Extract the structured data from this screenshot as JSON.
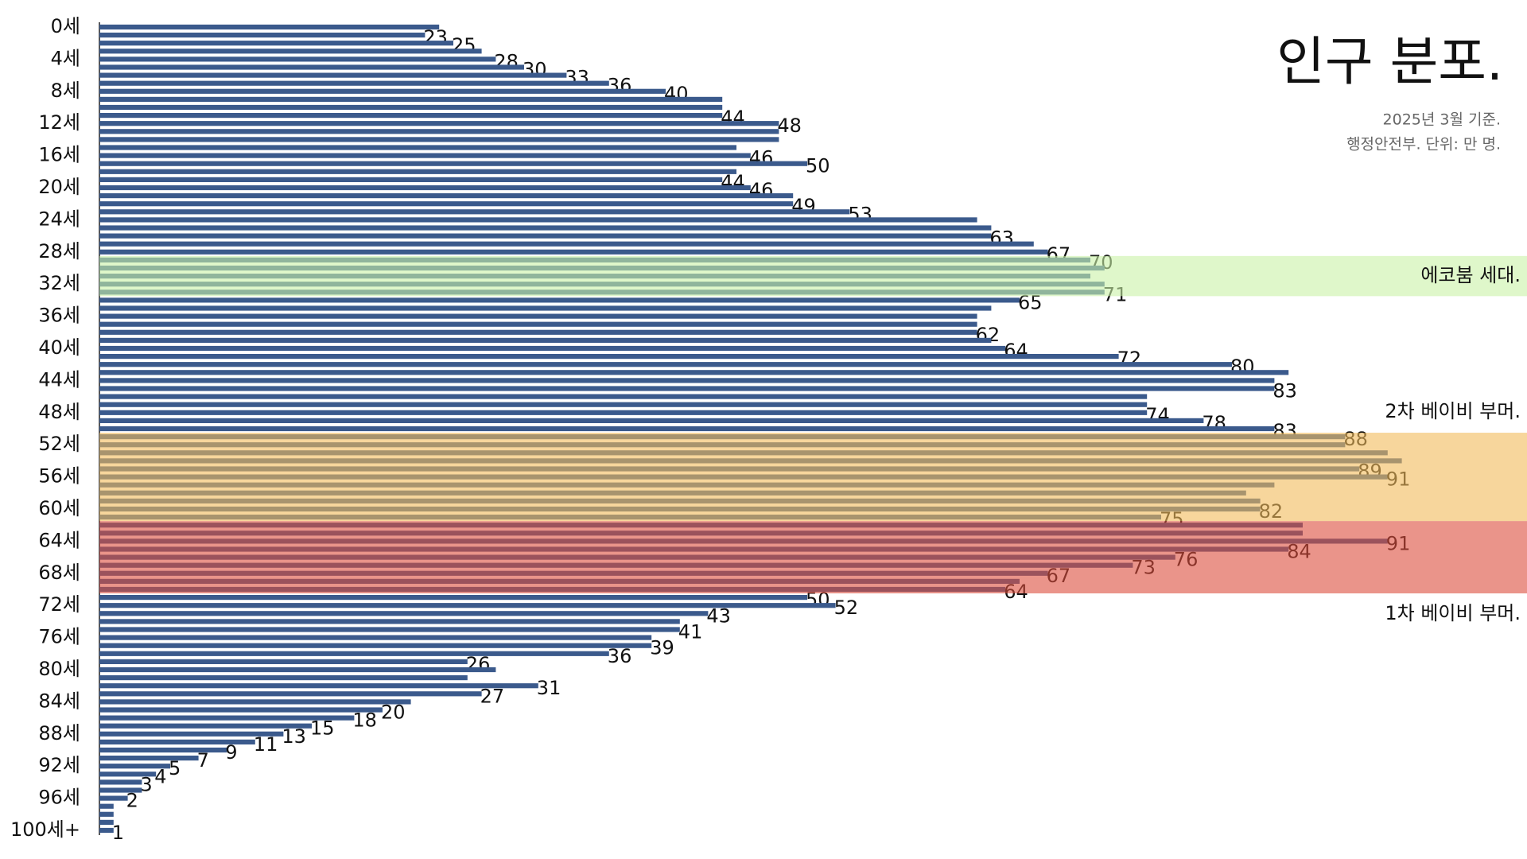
{
  "chart_data": {
    "type": "barh",
    "title": "인구 분포.",
    "subtitle": [
      "2025년 3월 기준.",
      "행정안전부. 단위: 만 명."
    ],
    "color": "#3b5a8c",
    "categories": [
      "0세",
      null,
      null,
      null,
      "4세",
      null,
      null,
      null,
      "8세",
      null,
      null,
      null,
      "12세",
      null,
      null,
      null,
      "16세",
      null,
      null,
      null,
      "20세",
      null,
      null,
      null,
      "24세",
      null,
      null,
      null,
      "28세",
      null,
      null,
      null,
      "32세",
      null,
      null,
      null,
      "36세",
      null,
      null,
      null,
      "40세",
      null,
      null,
      null,
      "44세",
      null,
      null,
      null,
      "48세",
      null,
      null,
      null,
      "52세",
      null,
      null,
      null,
      "56세",
      null,
      null,
      null,
      "60세",
      null,
      null,
      null,
      "64세",
      null,
      null,
      null,
      "68세",
      null,
      null,
      null,
      "72세",
      null,
      null,
      null,
      "76세",
      null,
      null,
      null,
      "80세",
      null,
      null,
      null,
      "84세",
      null,
      null,
      null,
      "88세",
      null,
      null,
      null,
      "92세",
      null,
      null,
      null,
      "96세",
      null,
      null,
      null,
      "100세+"
    ],
    "values": [
      24,
      23,
      25,
      27,
      28,
      30,
      33,
      36,
      40,
      44,
      44,
      44,
      48,
      48,
      48,
      45,
      46,
      50,
      45,
      44,
      46,
      49,
      49,
      53,
      62,
      63,
      63,
      66,
      67,
      70,
      71,
      70,
      71,
      71,
      65,
      63,
      62,
      62,
      62,
      63,
      64,
      72,
      80,
      84,
      83,
      83,
      74,
      74,
      74,
      78,
      83,
      88,
      88,
      91,
      92,
      89,
      91,
      83,
      81,
      82,
      82,
      75,
      85,
      85,
      91,
      84,
      76,
      73,
      67,
      65,
      64,
      50,
      52,
      43,
      41,
      41,
      39,
      39,
      36,
      26,
      28,
      26,
      31,
      27,
      22,
      20,
      18,
      15,
      13,
      11,
      9,
      7,
      5,
      4,
      3,
      3,
      2,
      1,
      1,
      1,
      1
    ],
    "value_labels": [
      null,
      "23",
      "25",
      null,
      "28",
      "30",
      "33",
      "36",
      "40",
      null,
      null,
      "44",
      "48",
      null,
      null,
      null,
      "46",
      "50",
      null,
      "44",
      "46",
      null,
      "49",
      "53",
      null,
      null,
      "63",
      null,
      "67",
      "70",
      null,
      null,
      null,
      "71",
      "65",
      null,
      null,
      null,
      "62",
      null,
      "64",
      "72",
      "80",
      null,
      null,
      "83",
      null,
      null,
      "74",
      "78",
      "83",
      "88",
      null,
      null,
      null,
      "89",
      "91",
      null,
      null,
      null,
      "82",
      "75",
      null,
      null,
      "91",
      "84",
      "76",
      "73",
      "67",
      null,
      "64",
      "50",
      "52",
      "43",
      null,
      "41",
      null,
      "39",
      "36",
      "26",
      null,
      null,
      "31",
      "27",
      null,
      "20",
      "18",
      "15",
      "13",
      "11",
      "9",
      "7",
      "5",
      "4",
      "3",
      null,
      "2",
      null,
      null,
      null,
      "1"
    ],
    "bands": [
      {
        "text": "에코붐 세대.",
        "start": 29,
        "end": 33,
        "color": "#c9f2a6",
        "label_position": "inside"
      },
      {
        "text": "2차 베이비 부머.",
        "start": 51,
        "end": 61,
        "color": "#f2bb5a",
        "label_position": "above"
      },
      {
        "text": "1차 베이비 부머.",
        "start": 62,
        "end": 70,
        "color": "#dc4d3c",
        "label_position": "below"
      }
    ]
  }
}
